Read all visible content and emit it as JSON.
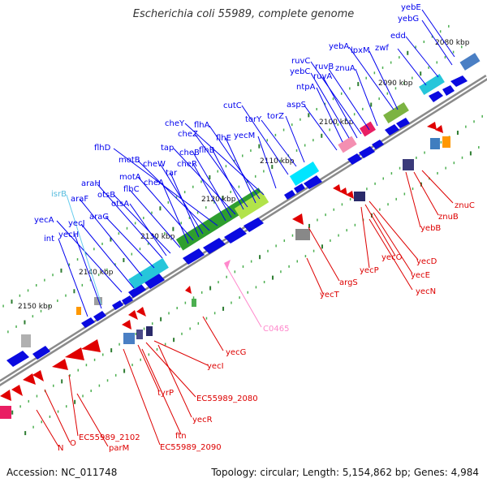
{
  "title": "Escherichia coli 55989, complete genome",
  "accession_text": "Accession: NC_011748",
  "summary_text": "Topology: circular; Length: 5,154,862 bp; Genes: 4,984",
  "colors": {
    "forward_gene": "#0000ee",
    "reverse_gene": "#dd0000",
    "misc_feature": "#66ccee",
    "pseudo_feature": "#ff88cc",
    "backbone": "#888888",
    "tick_green": "#2e7d32"
  },
  "kbp_ticks": [
    "2080 kbp",
    "2090 kbp",
    "2100 kbp",
    "2110 kbp",
    "2120 kbp",
    "2130 kbp",
    "2140 kbp",
    "2150 kbp"
  ],
  "top_labels": [
    "yebE",
    "yebG",
    "edd",
    "zwf",
    "yebA",
    "lpxM",
    "znuA",
    "ruvB",
    "ruvC",
    "yebC",
    "ruvA",
    "ntpA",
    "aspS",
    "cutC",
    "torY",
    "torZ",
    "yecM",
    "cheY",
    "flhA",
    "flhE",
    "cheZ",
    "flhB",
    "tap",
    "cheB",
    "cheR",
    "flhD",
    "motB",
    "cheW",
    "tar",
    "motA",
    "cheA",
    "flhC",
    "otsB",
    "araH",
    "isrB",
    "araF",
    "otsA",
    "araG",
    "yecA",
    "yecJ",
    "yecH",
    "int"
  ],
  "bottom_labels": [
    "znuC",
    "znuB",
    "yebB",
    "yecD",
    "yecO",
    "yecE",
    "yecP",
    "yecN",
    "argS",
    "yecT",
    "C0465",
    "yecG",
    "yecI",
    "EC55989_2080",
    "tyrP",
    "yecR",
    "ftn",
    "EC55989_2090",
    "EC55989_2102",
    "O",
    "parM",
    "N"
  ]
}
